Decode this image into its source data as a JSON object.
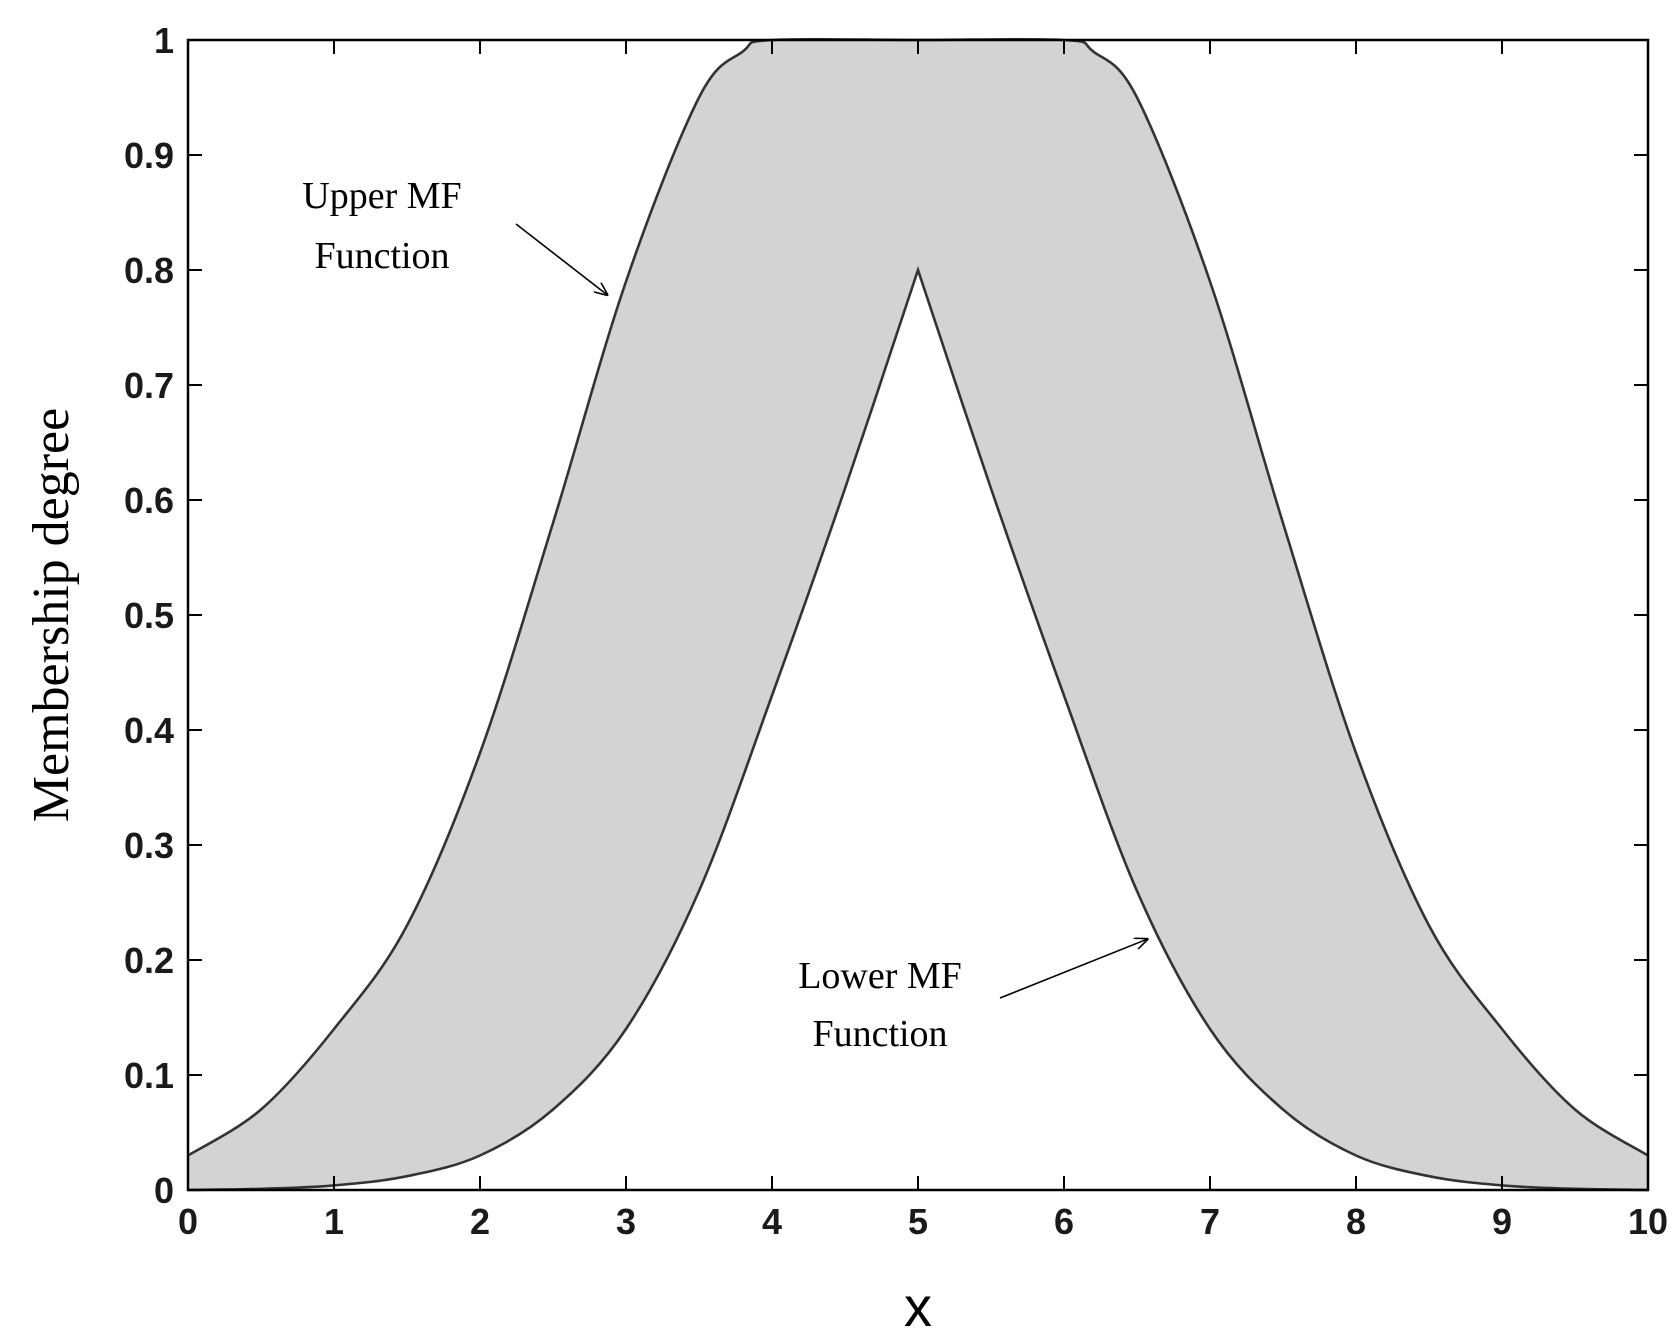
{
  "chart_data": {
    "type": "area",
    "xlabel": "x",
    "ylabel": "Membership degree",
    "xlim": [
      0,
      10
    ],
    "ylim": [
      0,
      1
    ],
    "x_ticks": [
      "0",
      "1",
      "2",
      "3",
      "4",
      "5",
      "6",
      "7",
      "8",
      "9",
      "10"
    ],
    "y_ticks": [
      "0",
      "0.1",
      "0.2",
      "0.3",
      "0.4",
      "0.5",
      "0.6",
      "0.7",
      "0.8",
      "0.9",
      "1"
    ],
    "grid": false,
    "fill_color": "#d3d3d3",
    "line_color": "#333333",
    "series": [
      {
        "label_lines": [
          "Upper MF",
          "Function"
        ],
        "x": [
          0,
          0.5,
          1,
          1.5,
          2,
          2.5,
          3,
          3.5,
          3.8,
          4,
          5,
          6,
          6.2,
          6.5,
          7,
          7.5,
          8,
          8.5,
          9,
          9.5,
          10
        ],
        "y": [
          0.03,
          0.07,
          0.14,
          0.23,
          0.38,
          0.58,
          0.79,
          0.95,
          0.99,
          1.0,
          1.0,
          1.0,
          0.99,
          0.95,
          0.79,
          0.58,
          0.38,
          0.23,
          0.14,
          0.07,
          0.03
        ]
      },
      {
        "label_lines": [
          "Lower MF",
          "Function"
        ],
        "x": [
          0,
          0.5,
          1,
          1.5,
          2,
          2.5,
          3,
          3.5,
          4,
          4.5,
          5,
          5.5,
          6,
          6.5,
          7,
          7.5,
          8,
          8.5,
          9,
          9.5,
          10
        ],
        "y": [
          0.0,
          0.001,
          0.004,
          0.012,
          0.03,
          0.07,
          0.14,
          0.26,
          0.43,
          0.61,
          0.8,
          0.61,
          0.43,
          0.26,
          0.14,
          0.07,
          0.03,
          0.012,
          0.004,
          0.001,
          0.0
        ]
      }
    ],
    "annotations": [
      {
        "series": 0,
        "text_lines": [
          "Upper MF",
          "Function"
        ],
        "arrow_to_x": 2.9,
        "arrow_to_y": 0.78
      },
      {
        "series": 1,
        "text_lines": [
          "Lower MF",
          "Function"
        ],
        "arrow_to_x": 6.6,
        "arrow_to_y": 0.22
      }
    ]
  }
}
